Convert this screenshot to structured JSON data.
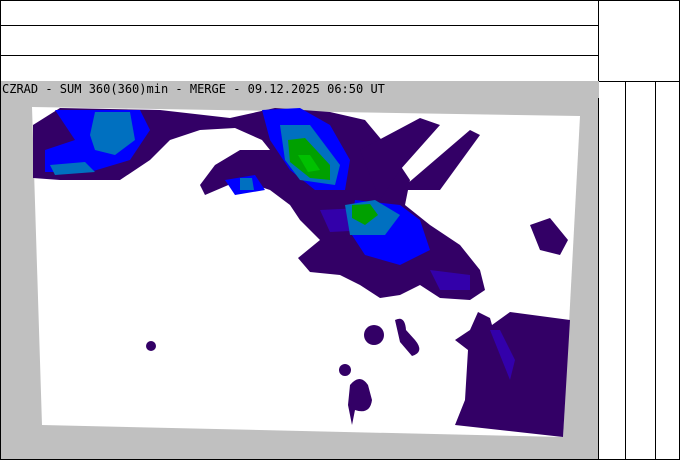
{
  "header": {
    "title": "CZRAD - SUM 360(360)min - MERGE - 09.12.2025 06:50 UT"
  },
  "map": {
    "colors": {
      "background": "#c0c0c0",
      "level1": "#330066",
      "level2": "#3300aa",
      "level3": "#0000ff",
      "level4": "#0070c0",
      "level5": "#00a000",
      "level6": "#00c000"
    }
  }
}
